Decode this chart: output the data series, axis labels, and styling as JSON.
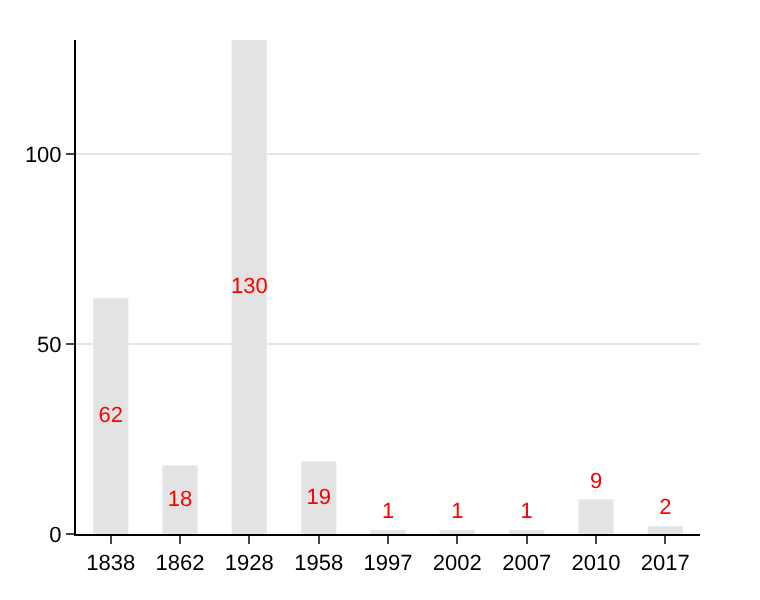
{
  "chart_data": {
    "type": "bar",
    "categories": [
      "1838",
      "1862",
      "1928",
      "1958",
      "1997",
      "2002",
      "2007",
      "2010",
      "2017"
    ],
    "values": [
      62,
      18,
      130,
      19,
      1,
      1,
      1,
      9,
      2
    ],
    "color": "#e3e3e3",
    "ylim": [
      0,
      130
    ],
    "yticks": [
      0,
      50,
      100
    ],
    "grid": "y",
    "data_labels": true
  }
}
